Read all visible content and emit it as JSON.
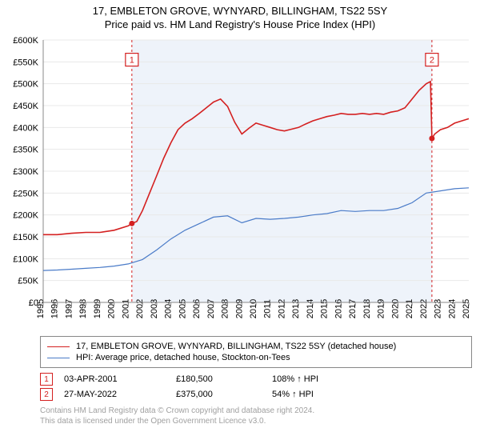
{
  "title": {
    "address": "17, EMBLETON GROVE, WYNYARD, BILLINGHAM, TS22 5SY",
    "subtitle": "Price paid vs. HM Land Registry's House Price Index (HPI)"
  },
  "chart": {
    "type": "line",
    "background_color": "#ffffff",
    "band_color": "#eef3fa",
    "gridline_color": "#e8e8e8",
    "axis_color": "#888888",
    "y": {
      "min": 0,
      "max": 600000,
      "step": 50000,
      "labels": [
        "£0",
        "£50K",
        "£100K",
        "£150K",
        "£200K",
        "£250K",
        "£300K",
        "£350K",
        "£400K",
        "£450K",
        "£500K",
        "£550K",
        "£600K"
      ]
    },
    "x": {
      "min": 1995,
      "max": 2025,
      "step": 1,
      "labels": [
        "1995",
        "1996",
        "1997",
        "1998",
        "1999",
        "2000",
        "2001",
        "2002",
        "2003",
        "2004",
        "2005",
        "2006",
        "2007",
        "2008",
        "2009",
        "2010",
        "2011",
        "2012",
        "2013",
        "2014",
        "2015",
        "2016",
        "2017",
        "2018",
        "2019",
        "2020",
        "2021",
        "2022",
        "2023",
        "2024",
        "2025"
      ],
      "band_start": 2001.25,
      "band_end": 2022.4
    },
    "series": [
      {
        "name": "17, EMBLETON GROVE, WYNYARD, BILLINGHAM, TS22 5SY (detached house)",
        "color": "#d42020",
        "width": 1.6,
        "data": [
          [
            1995,
            155000
          ],
          [
            1996,
            155000
          ],
          [
            1997,
            158000
          ],
          [
            1998,
            160000
          ],
          [
            1999,
            160000
          ],
          [
            2000,
            165000
          ],
          [
            2001,
            175000
          ],
          [
            2001.25,
            180500
          ],
          [
            2001.6,
            185000
          ],
          [
            2002,
            210000
          ],
          [
            2002.5,
            250000
          ],
          [
            2003,
            290000
          ],
          [
            2003.5,
            330000
          ],
          [
            2004,
            365000
          ],
          [
            2004.5,
            395000
          ],
          [
            2005,
            410000
          ],
          [
            2005.5,
            420000
          ],
          [
            2006,
            432000
          ],
          [
            2006.5,
            445000
          ],
          [
            2007,
            458000
          ],
          [
            2007.5,
            465000
          ],
          [
            2008,
            448000
          ],
          [
            2008.5,
            412000
          ],
          [
            2009,
            385000
          ],
          [
            2009.5,
            398000
          ],
          [
            2010,
            410000
          ],
          [
            2010.5,
            405000
          ],
          [
            2011,
            400000
          ],
          [
            2011.5,
            395000
          ],
          [
            2012,
            392000
          ],
          [
            2012.5,
            396000
          ],
          [
            2013,
            400000
          ],
          [
            2013.5,
            408000
          ],
          [
            2014,
            415000
          ],
          [
            2014.5,
            420000
          ],
          [
            2015,
            425000
          ],
          [
            2015.5,
            428000
          ],
          [
            2016,
            432000
          ],
          [
            2016.5,
            430000
          ],
          [
            2017,
            430000
          ],
          [
            2017.5,
            432000
          ],
          [
            2018,
            430000
          ],
          [
            2018.5,
            432000
          ],
          [
            2019,
            430000
          ],
          [
            2019.5,
            435000
          ],
          [
            2020,
            438000
          ],
          [
            2020.5,
            445000
          ],
          [
            2021,
            465000
          ],
          [
            2021.5,
            485000
          ],
          [
            2022,
            500000
          ],
          [
            2022.3,
            505000
          ],
          [
            2022.4,
            375000
          ],
          [
            2022.6,
            385000
          ],
          [
            2023,
            395000
          ],
          [
            2023.5,
            400000
          ],
          [
            2024,
            410000
          ],
          [
            2024.5,
            415000
          ],
          [
            2025,
            420000
          ]
        ]
      },
      {
        "name": "HPI: Average price, detached house, Stockton-on-Tees",
        "color": "#4a7bc8",
        "width": 1.2,
        "data": [
          [
            1995,
            73000
          ],
          [
            1996,
            74000
          ],
          [
            1997,
            76000
          ],
          [
            1998,
            78000
          ],
          [
            1999,
            80000
          ],
          [
            2000,
            83000
          ],
          [
            2001,
            88000
          ],
          [
            2002,
            98000
          ],
          [
            2003,
            120000
          ],
          [
            2004,
            145000
          ],
          [
            2005,
            165000
          ],
          [
            2006,
            180000
          ],
          [
            2007,
            195000
          ],
          [
            2008,
            198000
          ],
          [
            2009,
            182000
          ],
          [
            2010,
            192000
          ],
          [
            2011,
            190000
          ],
          [
            2012,
            192000
          ],
          [
            2013,
            195000
          ],
          [
            2014,
            200000
          ],
          [
            2015,
            203000
          ],
          [
            2016,
            210000
          ],
          [
            2017,
            208000
          ],
          [
            2018,
            210000
          ],
          [
            2019,
            210000
          ],
          [
            2020,
            215000
          ],
          [
            2021,
            228000
          ],
          [
            2022,
            250000
          ],
          [
            2023,
            255000
          ],
          [
            2024,
            260000
          ],
          [
            2025,
            262000
          ]
        ]
      }
    ],
    "markers": [
      {
        "n": "1",
        "x": 2001.25,
        "y": 180500,
        "box_y": 555000,
        "color": "#d42020"
      },
      {
        "n": "2",
        "x": 2022.4,
        "y": 375000,
        "box_y": 555000,
        "color": "#d42020"
      }
    ]
  },
  "legend": [
    {
      "color": "#d42020",
      "width": 1.6,
      "label": "17, EMBLETON GROVE, WYNYARD, BILLINGHAM, TS22 5SY (detached house)"
    },
    {
      "color": "#4a7bc8",
      "width": 1.2,
      "label": "HPI: Average price, detached house, Stockton-on-Tees"
    }
  ],
  "annotations": [
    {
      "n": "1",
      "color": "#d42020",
      "date": "03-APR-2001",
      "price": "£180,500",
      "change": "108% ↑ HPI"
    },
    {
      "n": "2",
      "color": "#d42020",
      "date": "27-MAY-2022",
      "price": "£375,000",
      "change": "54% ↑ HPI"
    }
  ],
  "footer": {
    "line1": "Contains HM Land Registry data © Crown copyright and database right 2024.",
    "line2": "This data is licensed under the Open Government Licence v3.0."
  }
}
